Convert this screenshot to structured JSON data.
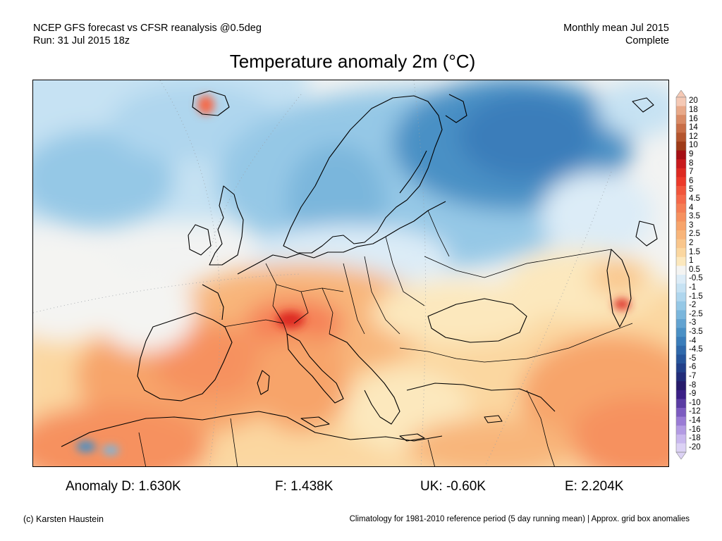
{
  "header": {
    "line1_left": "NCEP GFS forecast vs CFSR reanalysis @0.5deg",
    "line2_left": "Run: 31 Jul 2015 18z",
    "line1_right": "Monthly mean Jul 2015",
    "line2_right": "Complete"
  },
  "title": "Temperature anomaly 2m (°C)",
  "legend": {
    "labels": [
      "20",
      "18",
      "16",
      "14",
      "12",
      "10",
      "9",
      "8",
      "7",
      "6",
      "5",
      "4.5",
      "4",
      "3.5",
      "3",
      "2.5",
      "2",
      "1.5",
      "1",
      "0.5",
      "-0.5",
      "-1",
      "-1.5",
      "-2",
      "-2.5",
      "-3",
      "-3.5",
      "-4",
      "-4.5",
      "-5",
      "-6",
      "-7",
      "-8",
      "-9",
      "-10",
      "-12",
      "-14",
      "-16",
      "-18",
      "-20"
    ],
    "colors": [
      "#f5c9b5",
      "#e8a989",
      "#d98b66",
      "#c86e47",
      "#b4552e",
      "#9e3b18",
      "#a50f15",
      "#c81a1d",
      "#dd2a22",
      "#ec3a2a",
      "#f1553b",
      "#f5694a",
      "#f57e55",
      "#f6915f",
      "#f7a46b",
      "#f8b57a",
      "#f9c68c",
      "#fbd7a0",
      "#fce8bd",
      "#f4f4f2",
      "#dcecf7",
      "#c6e2f3",
      "#afd6ee",
      "#95c8e6",
      "#7ab6dc",
      "#62a3d1",
      "#4a90c5",
      "#3a7dba",
      "#2f69ab",
      "#26559b",
      "#22408a",
      "#222c79",
      "#261a6a",
      "#3b1f86",
      "#5a3ca3",
      "#7c5bc0",
      "#9a7bd5",
      "#b39be3",
      "#c9b8ee",
      "#dcd2f5"
    ]
  },
  "stats": {
    "germany": "Anomaly D: 1.630K",
    "france": "F: 1.438K",
    "uk": "UK: -0.60K",
    "england": "E: 2.204K"
  },
  "footer": {
    "credit": "(c) Karsten Haustein",
    "note": "Climatology for 1981-2010 reference period (5 day running mean) | Approx. grid box anomalies"
  }
}
